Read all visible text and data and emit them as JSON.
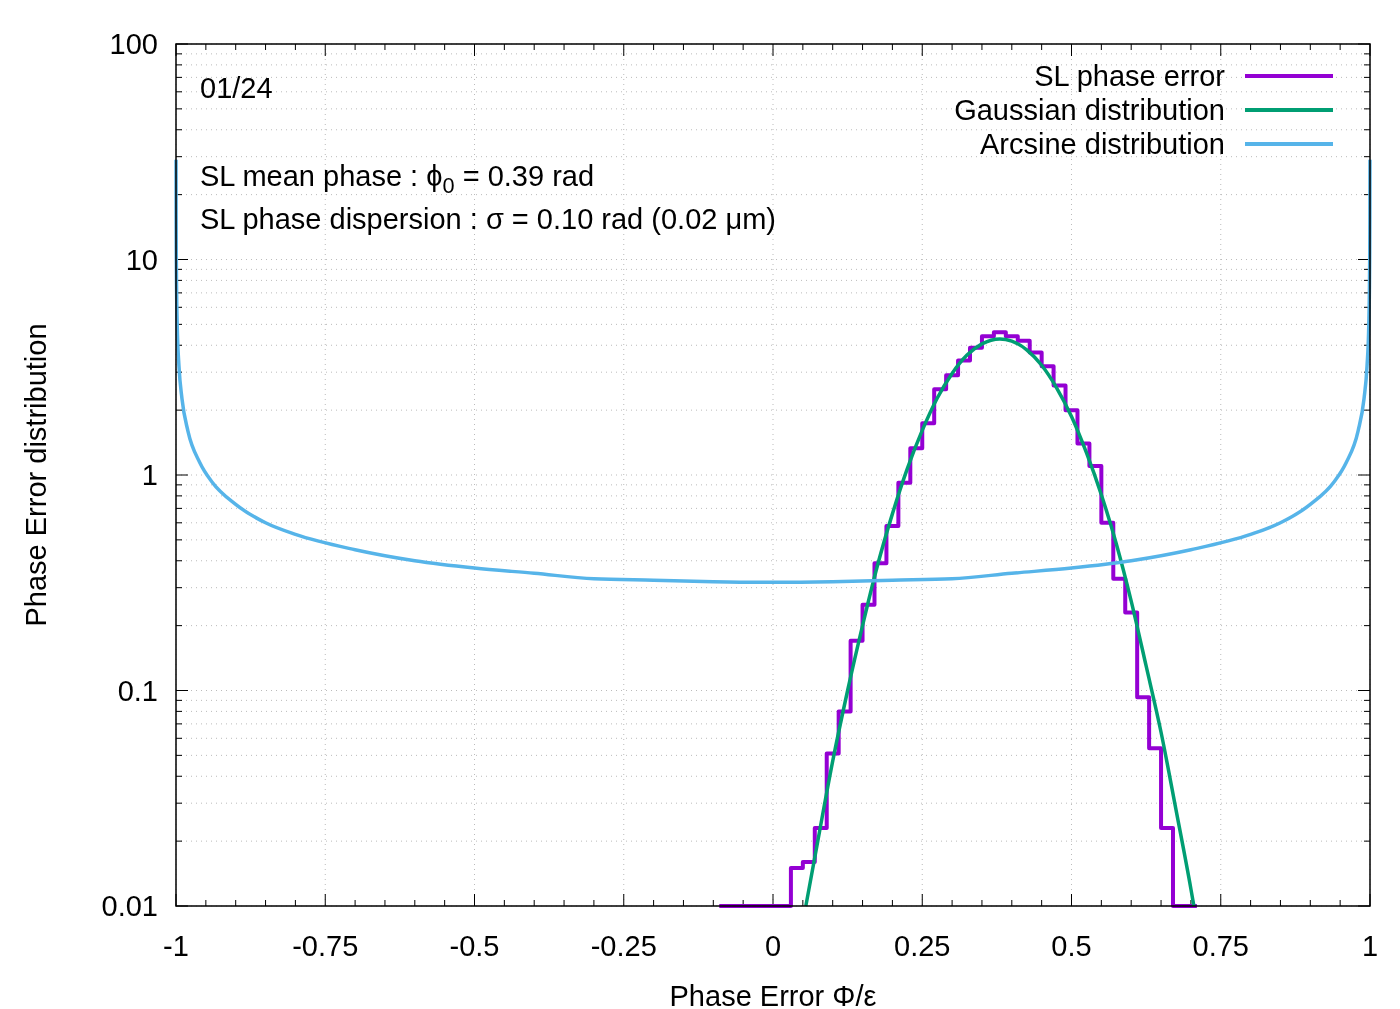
{
  "chart_data": {
    "type": "line",
    "xlabel": "Phase Error Φ/ε",
    "ylabel": "Phase Error distribution",
    "log": "y",
    "grid": true,
    "legend": "top right",
    "xlim": [
      -1,
      1
    ],
    "xticks": [
      -1,
      {
        "value": -0.95,
        "label": null
      },
      {
        "value": -0.9,
        "label": null
      },
      {
        "value": -0.85,
        "label": null
      },
      {
        "value": -0.8,
        "label": null
      },
      -0.75,
      {
        "value": -0.7,
        "label": null
      },
      {
        "value": -0.65,
        "label": null
      },
      {
        "value": -0.6,
        "label": null
      },
      {
        "value": -0.55,
        "label": null
      },
      -0.5,
      {
        "value": -0.45,
        "label": null
      },
      {
        "value": -0.4,
        "label": null
      },
      {
        "value": -0.35,
        "label": null
      },
      {
        "value": -0.3,
        "label": null
      },
      -0.25,
      {
        "value": -0.2,
        "label": null
      },
      {
        "value": -0.15,
        "label": null
      },
      {
        "value": -0.1,
        "label": null
      },
      {
        "value": -0.05,
        "label": null
      },
      0,
      {
        "value": 0.05,
        "label": null
      },
      {
        "value": 0.1,
        "label": null
      },
      {
        "value": 0.15,
        "label": null
      },
      {
        "value": 0.2,
        "label": null
      },
      0.25,
      {
        "value": 0.3,
        "label": null
      },
      {
        "value": 0.35,
        "label": null
      },
      {
        "value": 0.4,
        "label": null
      },
      {
        "value": 0.45,
        "label": null
      },
      0.5,
      {
        "value": 0.55,
        "label": null
      },
      {
        "value": 0.6,
        "label": null
      },
      {
        "value": 0.65,
        "label": null
      },
      {
        "value": 0.7,
        "label": null
      },
      0.75,
      {
        "value": 0.8,
        "label": null
      },
      {
        "value": 0.85,
        "label": null
      },
      {
        "value": 0.9,
        "label": null
      },
      {
        "value": 0.95,
        "label": null
      },
      1
    ],
    "ylim": [
      0.01,
      100
    ],
    "yticks": [
      0.01,
      {
        "value": 0.02,
        "label": null
      },
      {
        "value": 0.03,
        "label": null
      },
      {
        "value": 0.04,
        "label": null
      },
      {
        "value": 0.05,
        "label": null
      },
      {
        "value": 0.06,
        "label": null
      },
      {
        "value": 0.07,
        "label": null
      },
      {
        "value": 0.08,
        "label": null
      },
      {
        "value": 0.09,
        "label": null
      },
      0.1,
      {
        "value": 0.2,
        "label": null
      },
      {
        "value": 0.3,
        "label": null
      },
      {
        "value": 0.4,
        "label": null
      },
      {
        "value": 0.5,
        "label": null
      },
      {
        "value": 0.6,
        "label": null
      },
      {
        "value": 0.7,
        "label": null
      },
      {
        "value": 0.8,
        "label": null
      },
      {
        "value": 0.9,
        "label": null
      },
      1,
      {
        "value": 2,
        "label": null
      },
      {
        "value": 3,
        "label": null
      },
      {
        "value": 4,
        "label": null
      },
      {
        "value": 5,
        "label": null
      },
      {
        "value": 6,
        "label": null
      },
      {
        "value": 7,
        "label": null
      },
      {
        "value": 8,
        "label": null
      },
      {
        "value": 9,
        "label": null
      },
      10,
      {
        "value": 20,
        "label": null
      },
      {
        "value": 30,
        "label": null
      },
      {
        "value": 40,
        "label": null
      },
      {
        "value": 50,
        "label": null
      },
      {
        "value": 60,
        "label": null
      },
      {
        "value": 70,
        "label": null
      },
      {
        "value": 80,
        "label": null
      },
      {
        "value": 90,
        "label": null
      },
      100
    ],
    "annotations": [
      "01/24",
      "SL mean phase : ϕ$_{0}$ = 0.39 rad",
      "SL phase dispersion : σ = 0.10 rad (0.02 μm)"
    ],
    "series": [
      {
        "name": "SL phase error",
        "type": "histogram",
        "color": "#9400d3",
        "bins": [
          -0.09,
          -0.07,
          -0.05,
          -0.03,
          -0.01,
          0.01,
          0.03,
          0.05,
          0.07,
          0.09,
          0.11,
          0.13,
          0.15,
          0.17,
          0.19,
          0.21,
          0.23,
          0.25,
          0.27,
          0.29,
          0.31,
          0.33,
          0.35,
          0.37,
          0.39,
          0.41,
          0.43,
          0.45,
          0.47,
          0.49,
          0.51,
          0.53,
          0.55,
          0.57,
          0.59,
          0.61,
          0.63,
          0.65,
          0.67,
          0.69,
          0.71
        ],
        "values": [
          0.01,
          0.01,
          0.01,
          0.01,
          0.01,
          0.01,
          0.015,
          0.016,
          0.023,
          0.051,
          0.08,
          0.17,
          0.25,
          0.39,
          0.58,
          0.92,
          1.33,
          1.74,
          2.5,
          2.9,
          3.4,
          3.9,
          4.4,
          4.6,
          4.4,
          4.2,
          3.7,
          3.2,
          2.6,
          2.0,
          1.4,
          1.1,
          0.6,
          0.33,
          0.23,
          0.093,
          0.054,
          0.023,
          0.01,
          0.01
        ]
      },
      {
        "name": "Gaussian distribution",
        "type": "line",
        "color": "#009e73",
        "x": [
          0.055,
          0.075,
          0.1,
          0.125,
          0.15,
          0.175,
          0.2,
          0.225,
          0.25,
          0.275,
          0.3,
          0.325,
          0.35,
          0.38,
          0.4,
          0.425,
          0.45,
          0.475,
          0.5,
          0.525,
          0.55,
          0.575,
          0.6,
          0.625,
          0.65,
          0.675,
          0.7,
          0.705
        ],
        "values": [
          0.01,
          0.02,
          0.047,
          0.1,
          0.2,
          0.38,
          0.66,
          1.07,
          1.61,
          2.27,
          2.96,
          3.6,
          4.06,
          4.28,
          4.18,
          3.81,
          3.23,
          2.54,
          1.87,
          1.27,
          0.81,
          0.48,
          0.26,
          0.13,
          0.064,
          0.028,
          0.012,
          0.01
        ]
      },
      {
        "name": "Arcsine distribution",
        "type": "line",
        "color": "#56b4e9",
        "x": [
          -0.99994,
          -0.9998,
          -0.9995,
          -0.999,
          -0.998,
          -0.995,
          -0.99,
          -0.98,
          -0.96,
          -0.94,
          -0.9,
          -0.85,
          -0.8,
          -0.7,
          -0.6,
          -0.5,
          -0.4,
          -0.3,
          -0.2,
          -0.1,
          0,
          0.1,
          0.2,
          0.3,
          0.4,
          0.5,
          0.6,
          0.7,
          0.8,
          0.85,
          0.9,
          0.94,
          0.96,
          0.98,
          0.99,
          0.995,
          0.998,
          0.999,
          0.9995,
          0.9998,
          0.99994
        ],
        "values": [
          29,
          15.9,
          10.1,
          7.1,
          5.0,
          3.19,
          2.26,
          1.6,
          1.14,
          0.93,
          0.73,
          0.6,
          0.53,
          0.45,
          0.4,
          0.37,
          0.35,
          0.33,
          0.325,
          0.32,
          0.318,
          0.32,
          0.325,
          0.33,
          0.35,
          0.37,
          0.4,
          0.45,
          0.53,
          0.6,
          0.73,
          0.93,
          1.14,
          1.6,
          2.26,
          3.19,
          5.0,
          7.1,
          10.1,
          15.9,
          29
        ]
      }
    ]
  }
}
